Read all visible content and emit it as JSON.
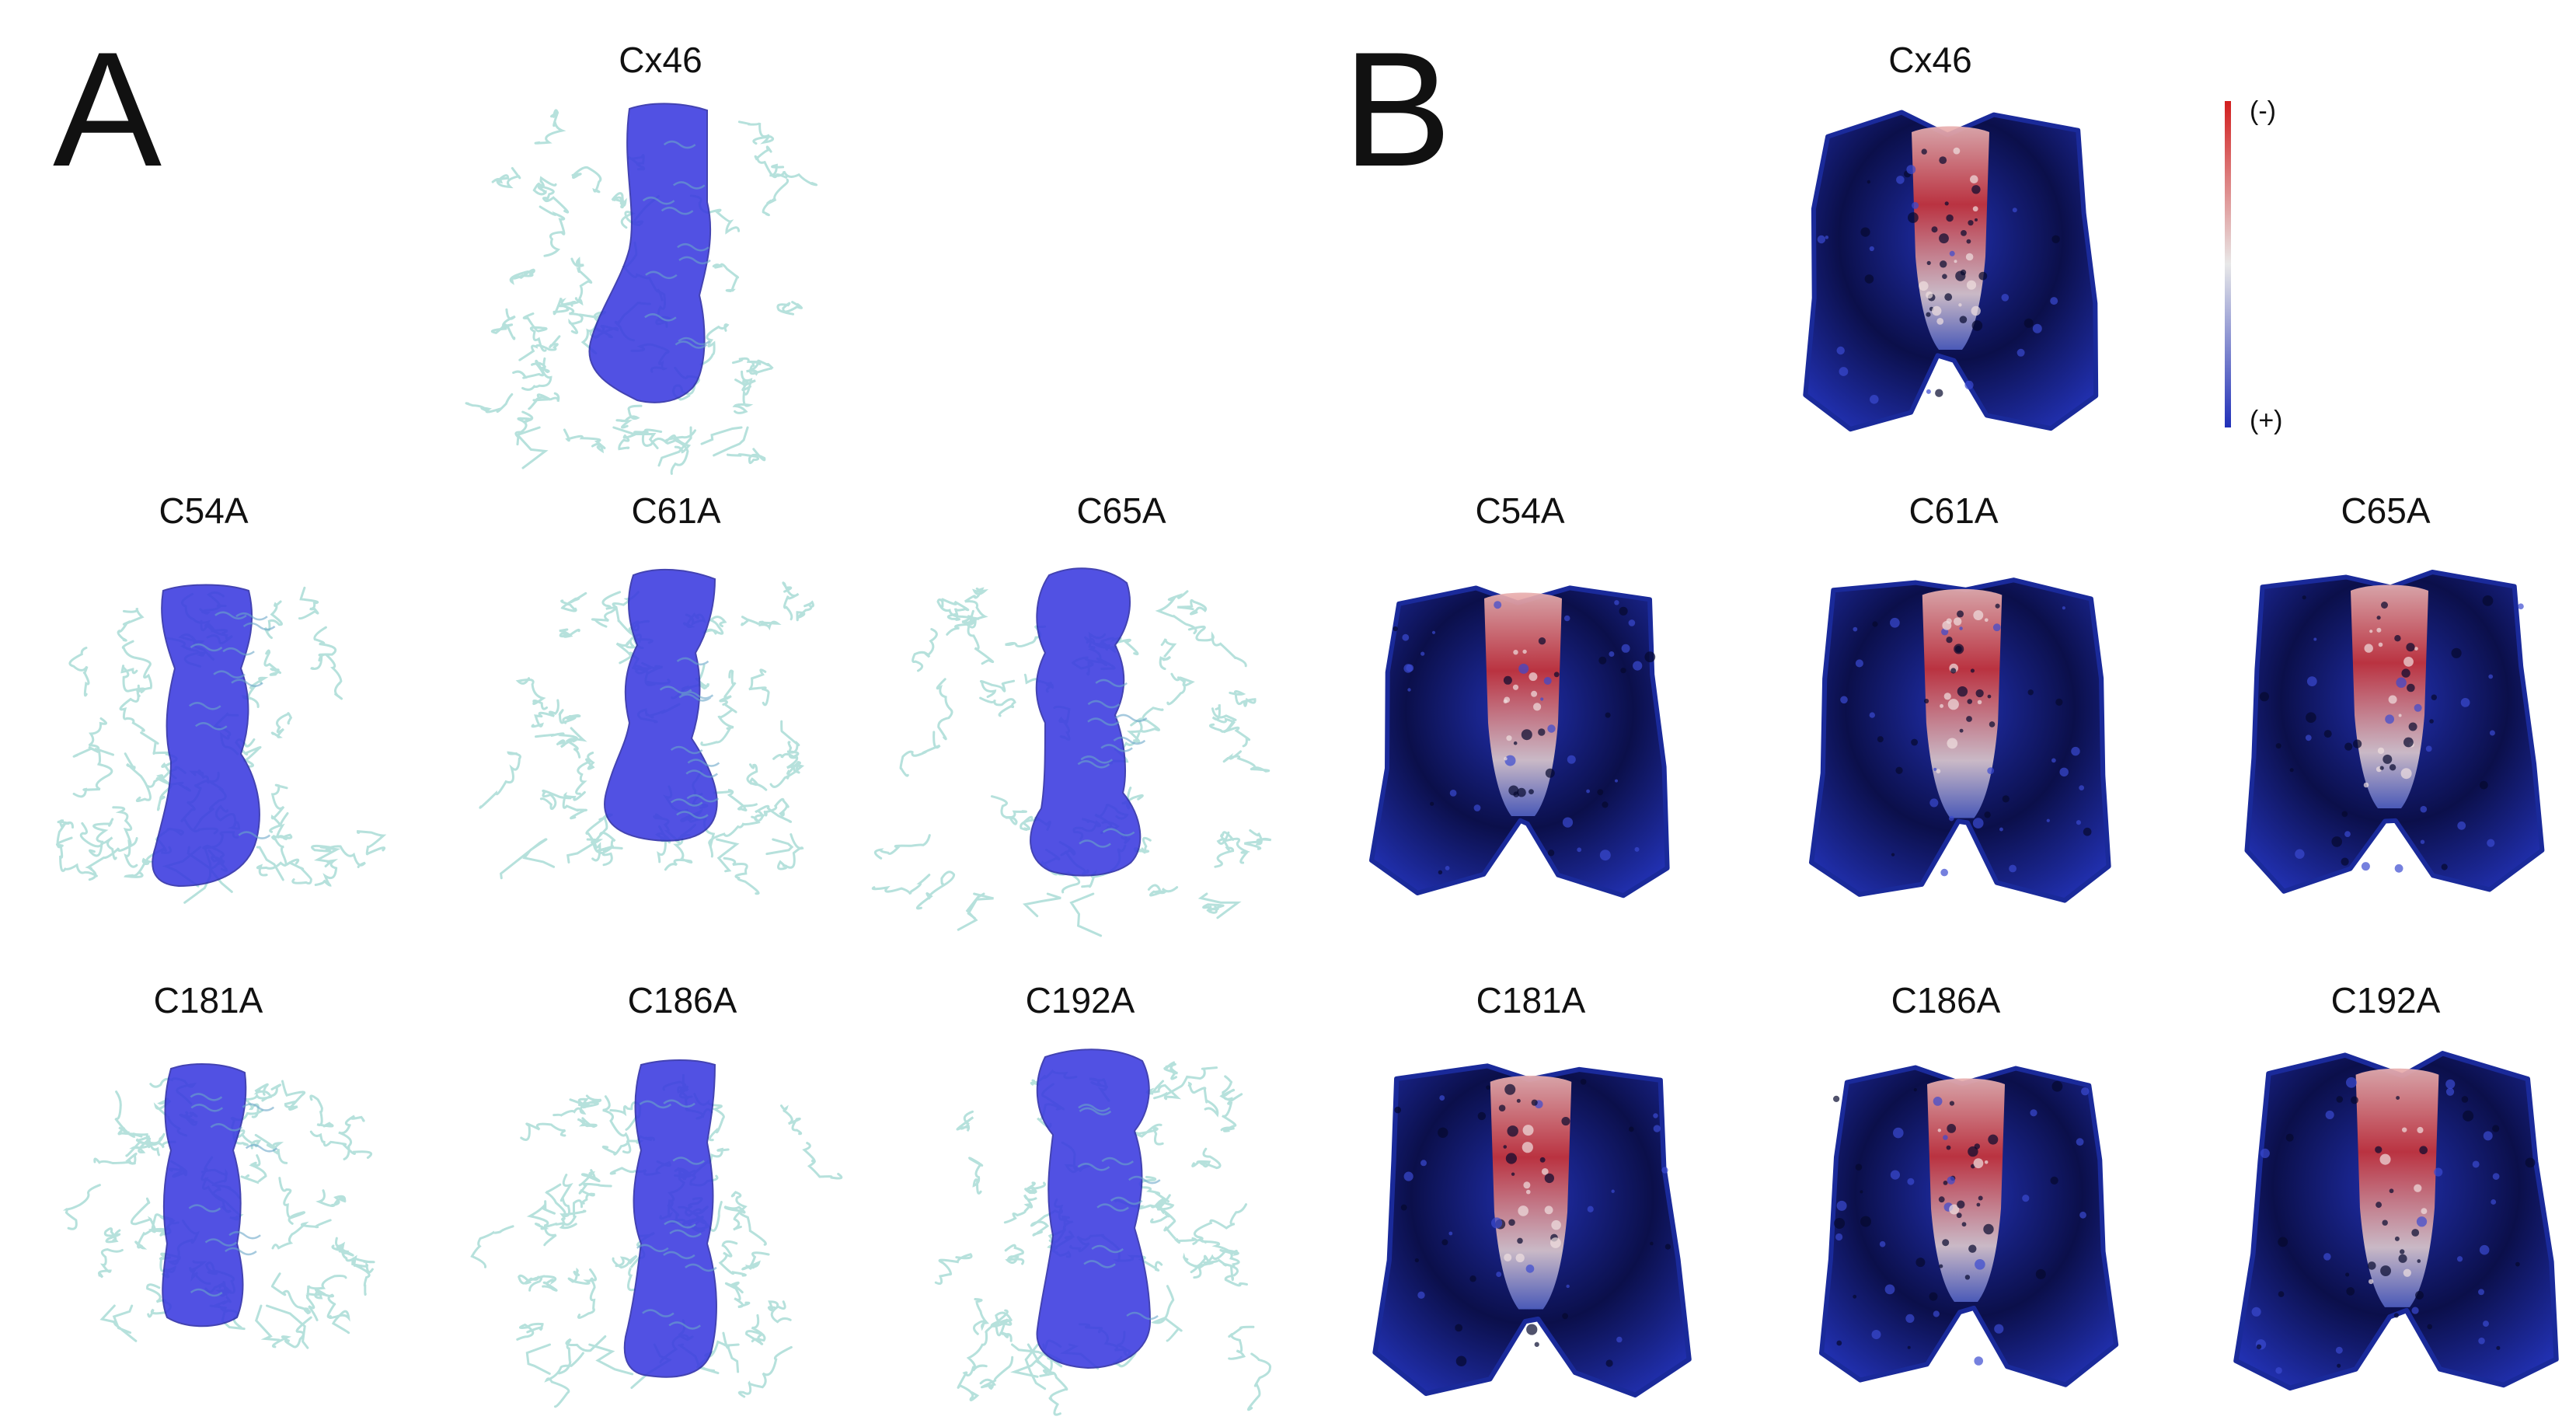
{
  "panel_a": {
    "letter": "A",
    "structures": [
      {
        "label": "Cx46",
        "pore": "pore-cx46"
      },
      {
        "label": "C54A",
        "pore": "pore-c54a"
      },
      {
        "label": "C61A",
        "pore": "pore-c61a"
      },
      {
        "label": "C65A",
        "pore": "pore-c65a"
      },
      {
        "label": "C181A",
        "pore": "pore-c181a"
      },
      {
        "label": "C186A",
        "pore": "pore-c186a"
      },
      {
        "label": "C192A",
        "pore": "pore-c192a"
      }
    ]
  },
  "panel_b": {
    "letter": "B",
    "surfaces": [
      {
        "label": "Cx46"
      },
      {
        "label": "C54A"
      },
      {
        "label": "C61A"
      },
      {
        "label": "C65A"
      },
      {
        "label": "C181A"
      },
      {
        "label": "C186A"
      },
      {
        "label": "C192A"
      }
    ],
    "colorbar": {
      "top_label": "(-)",
      "bottom_label": "(+)",
      "top_color": "#d21e1e",
      "mid_color": "#e8e8e8",
      "bottom_color": "#1f2fb8"
    }
  },
  "colors": {
    "ribbon": "#a9dcd6",
    "pore": "#3a3ae0",
    "surface_dark": "#0b0f4a",
    "surface_blue": "#2130b0",
    "surface_red": "#c8343a"
  }
}
